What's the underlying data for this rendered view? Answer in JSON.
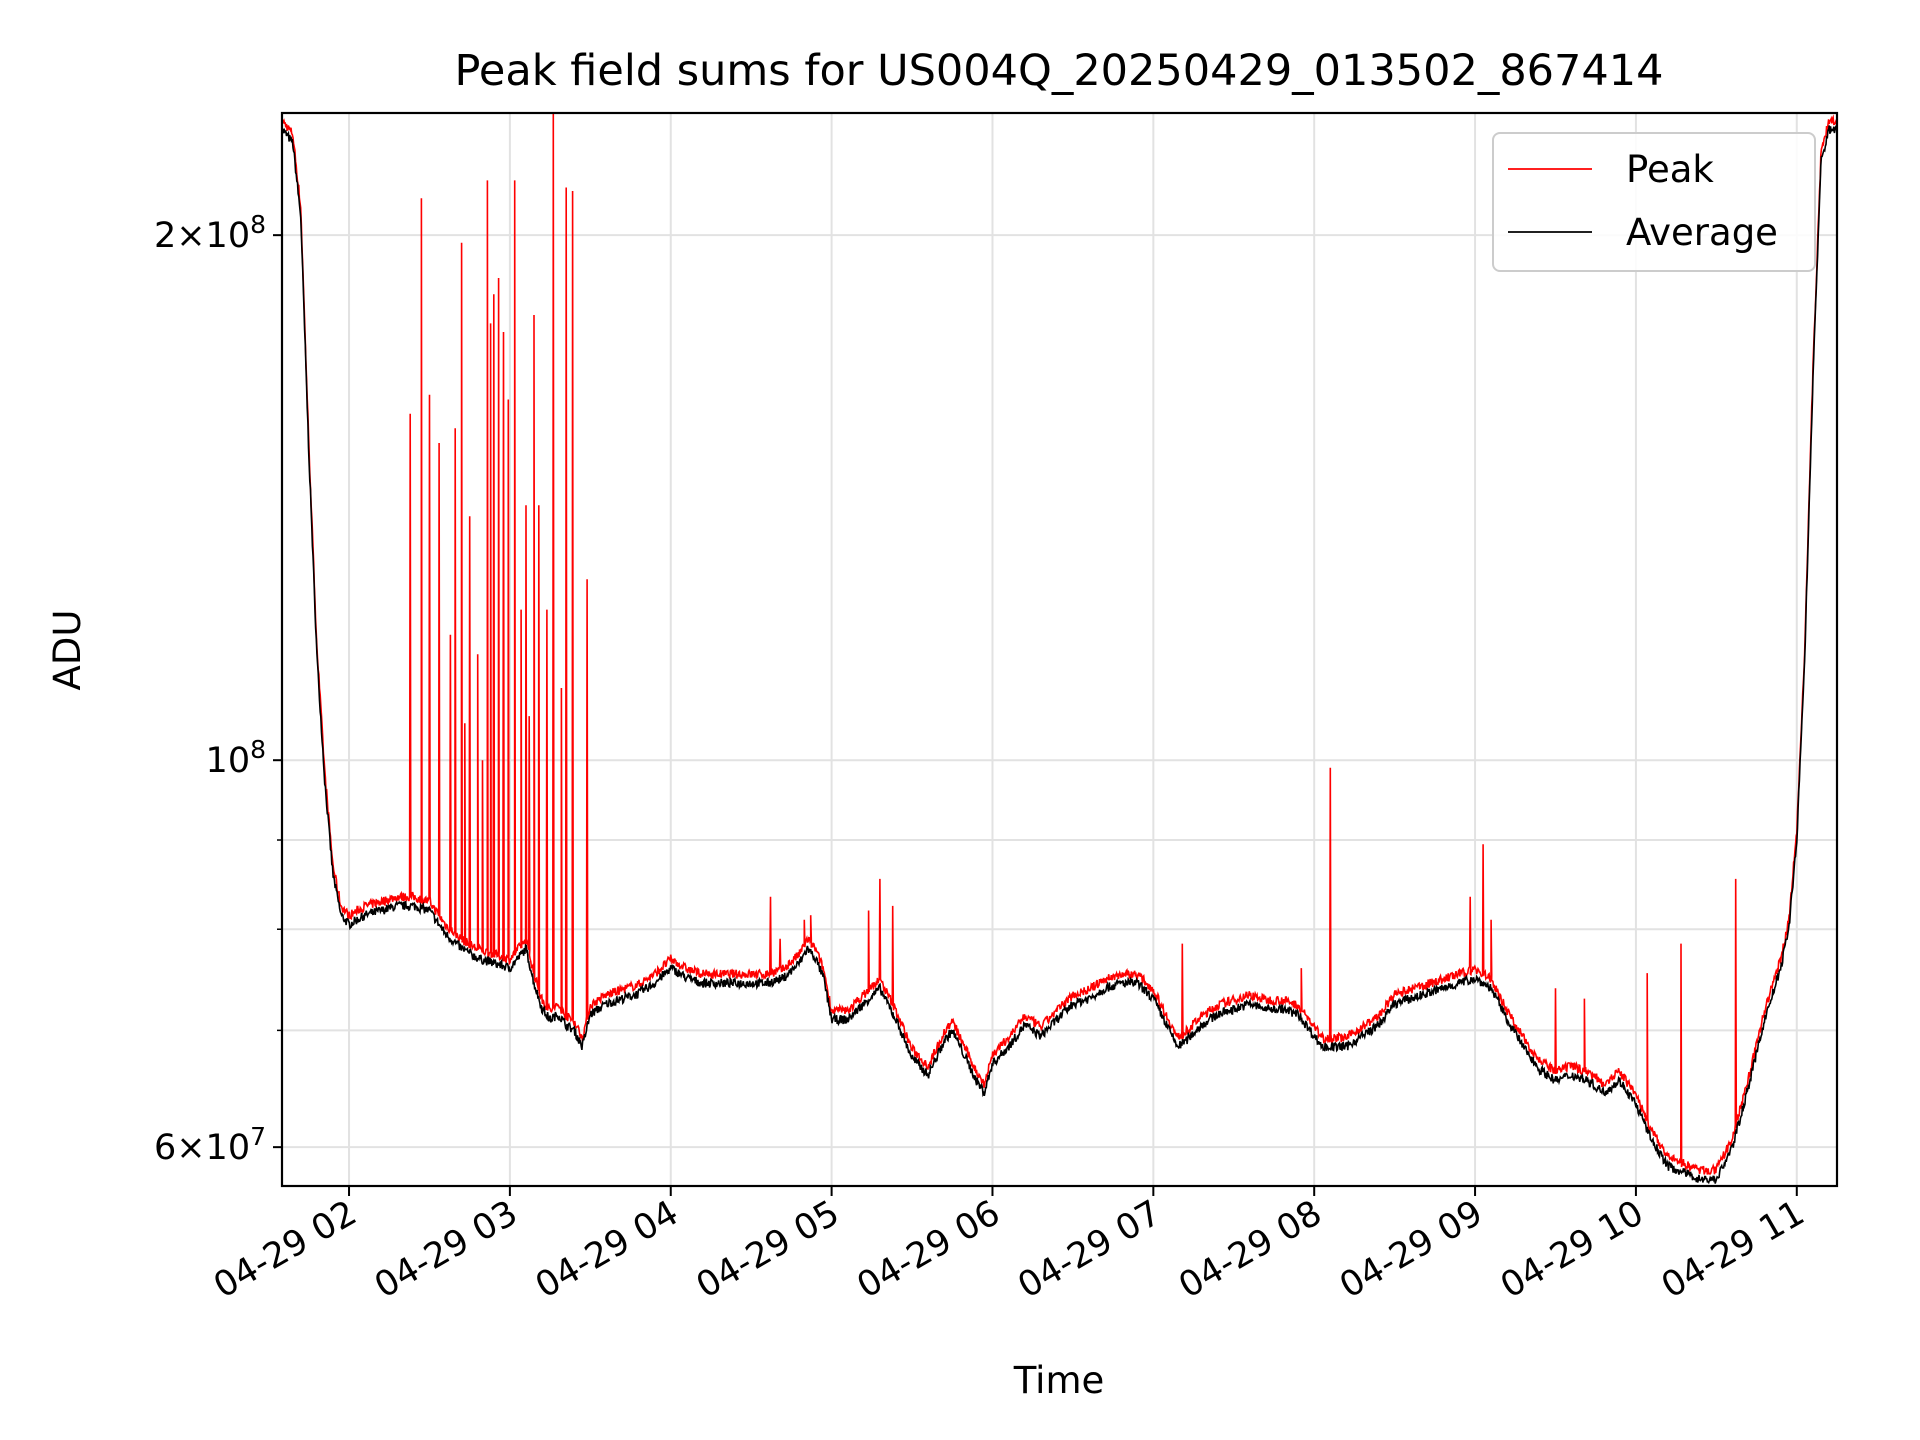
{
  "chart_data": {
    "type": "line",
    "title": "Peak field sums for US004Q_20250429_013502_867414",
    "xlabel": "Time",
    "ylabel": "ADU",
    "yscale": "log",
    "ylim": [
      57000000,
      235000000
    ],
    "xlim": [
      "04-29 01:35",
      "04-29 11:15"
    ],
    "grid": true,
    "legend_position": "top-right",
    "x_tick_labels": [
      "04-29 02",
      "04-29 03",
      "04-29 04",
      "04-29 05",
      "04-29 06",
      "04-29 07",
      "04-29 08",
      "04-29 09",
      "04-29 10",
      "04-29 11"
    ],
    "y_tick_labels": [
      {
        "value": 60000000,
        "mantissa": "6",
        "exponent": "7"
      },
      {
        "value": 100000000,
        "mantissa": "",
        "exponent": "8"
      },
      {
        "value": 200000000,
        "mantissa": "2",
        "exponent": "8"
      }
    ],
    "x_tick_hours": [
      2,
      3,
      4,
      5,
      6,
      7,
      8,
      9,
      10,
      11
    ],
    "y_minor_gridlines": [
      70000000,
      80000000,
      90000000
    ],
    "series": [
      {
        "name": "Average",
        "color": "#000000",
        "x_hours": [
          1.583,
          1.65,
          1.7,
          1.75,
          1.8,
          1.85,
          1.9,
          1.95,
          2.0,
          2.05,
          2.1,
          2.2,
          2.3,
          2.4,
          2.5,
          2.6,
          2.7,
          2.8,
          2.9,
          3.0,
          3.1,
          3.15,
          3.2,
          3.25,
          3.3,
          3.35,
          3.4,
          3.45,
          3.5,
          3.55,
          3.6,
          3.7,
          3.8,
          3.9,
          4.0,
          4.1,
          4.2,
          4.3,
          4.4,
          4.5,
          4.6,
          4.7,
          4.8,
          4.85,
          4.9,
          4.95,
          5.0,
          5.1,
          5.2,
          5.3,
          5.4,
          5.5,
          5.6,
          5.7,
          5.75,
          5.8,
          5.9,
          5.95,
          6.0,
          6.1,
          6.2,
          6.3,
          6.4,
          6.5,
          6.6,
          6.7,
          6.8,
          6.9,
          7.0,
          7.1,
          7.15,
          7.2,
          7.3,
          7.4,
          7.5,
          7.6,
          7.7,
          7.8,
          7.9,
          8.0,
          8.05,
          8.1,
          8.2,
          8.3,
          8.4,
          8.5,
          8.6,
          8.7,
          8.8,
          8.9,
          9.0,
          9.1,
          9.2,
          9.3,
          9.4,
          9.5,
          9.6,
          9.7,
          9.8,
          9.9,
          10.0,
          10.1,
          10.2,
          10.3,
          10.4,
          10.5,
          10.6,
          10.7,
          10.8,
          10.9,
          10.95,
          11.0,
          11.05,
          11.1,
          11.15,
          11.2,
          11.25
        ],
        "values": [
          230000000,
          226000000,
          205000000,
          150000000,
          115000000,
          97000000,
          86000000,
          81500000,
          80500000,
          81000000,
          81500000,
          82000000,
          82500000,
          82500000,
          82000000,
          79500000,
          78000000,
          77000000,
          76500000,
          76000000,
          78000000,
          74500000,
          72000000,
          71000000,
          71500000,
          70500000,
          70000000,
          68500000,
          71500000,
          72000000,
          72500000,
          73000000,
          73500000,
          74500000,
          76000000,
          75000000,
          74500000,
          74500000,
          74500000,
          74500000,
          74500000,
          75000000,
          76500000,
          78000000,
          77000000,
          75000000,
          71000000,
          71000000,
          72500000,
          74000000,
          71000000,
          67500000,
          66000000,
          69000000,
          70000000,
          68500000,
          65500000,
          64500000,
          67000000,
          68500000,
          70500000,
          69500000,
          71000000,
          72500000,
          73000000,
          74000000,
          74500000,
          74500000,
          73000000,
          70000000,
          68500000,
          69000000,
          70500000,
          71500000,
          72000000,
          72500000,
          72000000,
          72000000,
          71500000,
          69500000,
          68500000,
          68500000,
          68500000,
          69500000,
          70500000,
          72500000,
          73000000,
          73500000,
          74000000,
          74500000,
          75000000,
          74000000,
          71000000,
          68500000,
          66500000,
          65500000,
          66000000,
          65500000,
          64500000,
          65500000,
          63500000,
          60500000,
          58500000,
          58000000,
          57500000,
          57500000,
          60000000,
          65000000,
          71000000,
          76000000,
          80000000,
          90000000,
          115000000,
          165000000,
          220000000,
          230000000,
          230000000
        ]
      },
      {
        "name": "Peak",
        "color": "#ff0000",
        "baseline_offset": 1.012,
        "spikes": [
          [
            2.38,
            158000000
          ],
          [
            2.45,
            210000000
          ],
          [
            2.5,
            162000000
          ],
          [
            2.56,
            152000000
          ],
          [
            2.63,
            118000000
          ],
          [
            2.66,
            155000000
          ],
          [
            2.7,
            198000000
          ],
          [
            2.72,
            105000000
          ],
          [
            2.75,
            138000000
          ],
          [
            2.8,
            115000000
          ],
          [
            2.83,
            100000000
          ],
          [
            2.86,
            215000000
          ],
          [
            2.88,
            178000000
          ],
          [
            2.9,
            185000000
          ],
          [
            2.93,
            189000000
          ],
          [
            2.96,
            176000000
          ],
          [
            2.99,
            161000000
          ],
          [
            3.03,
            215000000
          ],
          [
            3.07,
            122000000
          ],
          [
            3.1,
            140000000
          ],
          [
            3.12,
            106000000
          ],
          [
            3.15,
            180000000
          ],
          [
            3.18,
            140000000
          ],
          [
            3.23,
            122000000
          ],
          [
            3.27,
            235000000
          ],
          [
            3.32,
            110000000
          ],
          [
            3.35,
            213000000
          ],
          [
            3.39,
            212000000
          ],
          [
            3.48,
            127000000
          ],
          [
            4.62,
            83500000
          ],
          [
            4.68,
            79000000
          ],
          [
            4.83,
            81000000
          ],
          [
            4.87,
            81500000
          ],
          [
            5.23,
            82000000
          ],
          [
            5.3,
            85500000
          ],
          [
            5.38,
            82500000
          ],
          [
            7.18,
            78500000
          ],
          [
            7.92,
            76000000
          ],
          [
            8.1,
            99000000
          ],
          [
            8.97,
            83500000
          ],
          [
            9.05,
            89500000
          ],
          [
            9.1,
            81000000
          ],
          [
            9.5,
            74000000
          ],
          [
            9.68,
            73000000
          ],
          [
            10.07,
            75500000
          ],
          [
            10.28,
            78500000
          ],
          [
            10.62,
            85500000
          ]
        ]
      }
    ]
  },
  "legend": {
    "peak_label": "Peak",
    "average_label": "Average"
  }
}
